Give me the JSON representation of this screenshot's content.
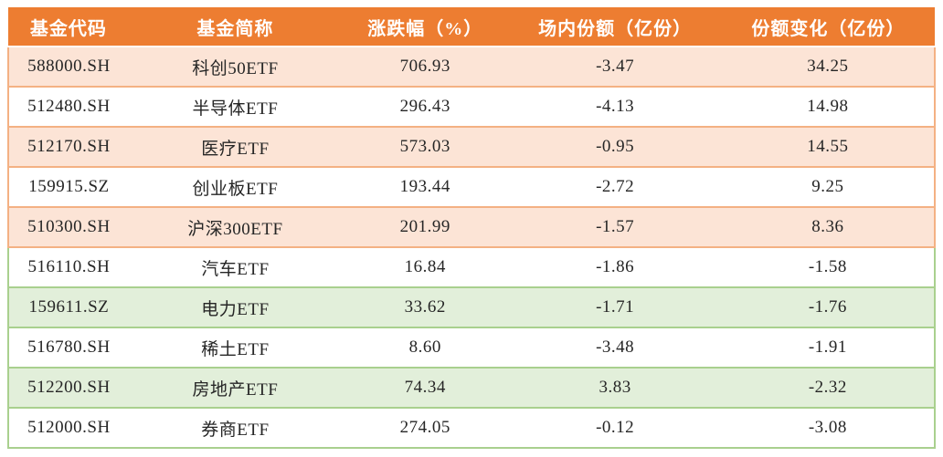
{
  "colors": {
    "header_bg": "#ED7D31",
    "header_text": "#FFFFFF",
    "orange_row_fill": "#FCE4D6",
    "orange_border": "#F4B183",
    "green_row_fill": "#E2EFDA",
    "green_border": "#A9D08E",
    "body_text": "#262626",
    "page_bg": "#FFFFFF"
  },
  "table": {
    "columns": [
      {
        "label": "基金代码"
      },
      {
        "label": "基金简称"
      },
      {
        "label": "涨跌幅（%）"
      },
      {
        "label": "场内份额（亿份）"
      },
      {
        "label": "份额变化（亿份）"
      }
    ],
    "rows": [
      {
        "code": "588000.SH",
        "name": "科创50ETF",
        "change_pct": "706.93",
        "shares": "-3.47",
        "share_change": "34.25",
        "section": "orange",
        "shaded": true
      },
      {
        "code": "512480.SH",
        "name": "半导体ETF",
        "change_pct": "296.43",
        "shares": "-4.13",
        "share_change": "14.98",
        "section": "orange",
        "shaded": false
      },
      {
        "code": "512170.SH",
        "name": "医疗ETF",
        "change_pct": "573.03",
        "shares": "-0.95",
        "share_change": "14.55",
        "section": "orange",
        "shaded": true
      },
      {
        "code": "159915.SZ",
        "name": "创业板ETF",
        "change_pct": "193.44",
        "shares": "-2.72",
        "share_change": "9.25",
        "section": "orange",
        "shaded": false
      },
      {
        "code": "510300.SH",
        "name": "沪深300ETF",
        "change_pct": "201.99",
        "shares": "-1.57",
        "share_change": "8.36",
        "section": "orange",
        "shaded": true
      },
      {
        "code": "516110.SH",
        "name": "汽车ETF",
        "change_pct": "16.84",
        "shares": "-1.86",
        "share_change": "-1.58",
        "section": "green",
        "shaded": false
      },
      {
        "code": "159611.SZ",
        "name": "电力ETF",
        "change_pct": "33.62",
        "shares": "-1.71",
        "share_change": "-1.76",
        "section": "green",
        "shaded": true
      },
      {
        "code": "516780.SH",
        "name": "稀土ETF",
        "change_pct": "8.60",
        "shares": "-3.48",
        "share_change": "-1.91",
        "section": "green",
        "shaded": false
      },
      {
        "code": "512200.SH",
        "name": "房地产ETF",
        "change_pct": "74.34",
        "shares": "3.83",
        "share_change": "-2.32",
        "section": "green",
        "shaded": true
      },
      {
        "code": "512000.SH",
        "name": "券商ETF",
        "change_pct": "274.05",
        "shares": "-0.12",
        "share_change": "-3.08",
        "section": "green",
        "shaded": false
      }
    ]
  },
  "chart_data": {
    "type": "table",
    "title": "",
    "columns": [
      "基金代码",
      "基金简称",
      "涨跌幅（%）",
      "场内份额（亿份）",
      "份额变化（亿份）"
    ],
    "rows": [
      [
        "588000.SH",
        "科创50ETF",
        706.93,
        -3.47,
        34.25
      ],
      [
        "512480.SH",
        "半导体ETF",
        296.43,
        -4.13,
        14.98
      ],
      [
        "512170.SH",
        "医疗ETF",
        573.03,
        -0.95,
        14.55
      ],
      [
        "159915.SZ",
        "创业板ETF",
        193.44,
        -2.72,
        9.25
      ],
      [
        "510300.SH",
        "沪深300ETF",
        201.99,
        -1.57,
        8.36
      ],
      [
        "516110.SH",
        "汽车ETF",
        16.84,
        -1.86,
        -1.58
      ],
      [
        "159611.SZ",
        "电力ETF",
        33.62,
        -1.71,
        -1.76
      ],
      [
        "516780.SH",
        "稀土ETF",
        8.6,
        -3.48,
        -1.91
      ],
      [
        "512200.SH",
        "房地产ETF",
        74.34,
        3.83,
        -2.32
      ],
      [
        "512000.SH",
        "券商ETF",
        274.05,
        -0.12,
        -3.08
      ]
    ],
    "layout_hints": {
      "header_style": "solid orange, white bold text",
      "row_banding": "rows 1,3,5 light orange; rows 7,9 light green; others white",
      "grid": "horizontal separators only, orange for top 5 data rows, green for bottom 5"
    }
  }
}
